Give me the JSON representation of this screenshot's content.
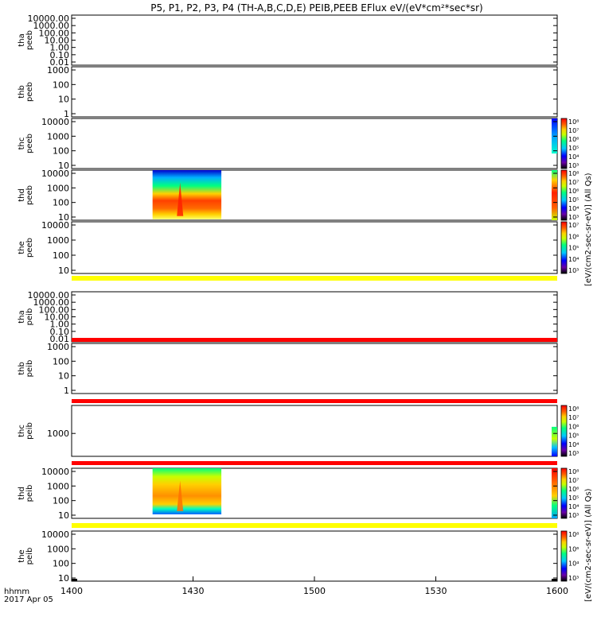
{
  "title": "P5, P1, P2, P3, P4 (TH-A,B,C,D,E) PEIB,PEEB EFlux eV/(eV*cm²*sec*sr)",
  "footer": {
    "xunit": "hhmm",
    "date": "2017 Apr 05"
  },
  "cbar_labels": {
    "upper": "[eV/(cm2-sec-sr-eV)] (All Qs)",
    "lower": "[eV/(cm2-sec-sr-eV)] (All Qs)"
  },
  "colors": {
    "spectrum": [
      "#000000",
      "#6a00a8",
      "#0000ff",
      "#00c8ff",
      "#00ff80",
      "#c8ff00",
      "#ffd000",
      "#ff6000",
      "#ff0000"
    ],
    "band_yellow": "#ffff00",
    "band_red": "#ff0000"
  },
  "chart_data": {
    "type": "heatmap",
    "x_ticks": [
      "1400",
      "1430",
      "1500",
      "1530",
      "1600"
    ],
    "xlim": [
      "1400",
      "1600"
    ],
    "panels": [
      {
        "id": "tha-peeb",
        "ylabel": [
          "tha",
          "peeb"
        ],
        "ticks": [
          "10000.00",
          "1000.00",
          "100.00",
          "10.00",
          "1.00",
          "0.10",
          "0.01"
        ],
        "data": [],
        "colorbar": null
      },
      {
        "id": "thb-peeb",
        "ylabel": [
          "thb",
          "peeb"
        ],
        "ticks": [
          "1000",
          "100",
          "10",
          "1"
        ],
        "data": [],
        "colorbar": null
      },
      {
        "id": "thc-peeb",
        "ylabel": [
          "thc",
          "peeb"
        ],
        "ticks": [
          "10000",
          "1000",
          "100",
          "10"
        ],
        "data": [
          {
            "x": [
              "1557",
              "1600"
            ],
            "level": "blue-cyan"
          }
        ],
        "colorbar": {
          "ticks": [
            "10⁸",
            "10⁷",
            "10⁶",
            "10⁵",
            "10⁴",
            "10³"
          ]
        }
      },
      {
        "id": "thd-peeb",
        "ylabel": [
          "thd",
          "peeb"
        ],
        "ticks": [
          "10000",
          "1000",
          "100",
          "10"
        ],
        "data": [
          {
            "x": [
              "1420",
              "1437"
            ],
            "level": "orange-red peak"
          },
          {
            "x": [
              "1557",
              "1600"
            ],
            "level": "red-orange"
          }
        ],
        "colorbar": {
          "ticks": [
            "10⁸",
            "10⁷",
            "10⁶",
            "10⁵",
            "10⁴",
            "10³"
          ]
        }
      },
      {
        "id": "the-peeb",
        "ylabel": [
          "the",
          "peeb"
        ],
        "ticks": [
          "10000",
          "1000",
          "100",
          "10"
        ],
        "data": [],
        "colorbar": {
          "ticks": [
            "10⁷",
            "10⁶",
            "10⁵",
            "10⁴",
            "10³"
          ]
        }
      },
      {
        "id": "tha-peib",
        "ylabel": [
          "tha",
          "peib"
        ],
        "ticks": [
          "10000.00",
          "1000.00",
          "100.00",
          "10.00",
          "1.00",
          "0.10",
          "0.01"
        ],
        "data": [],
        "colorbar": null
      },
      {
        "id": "thb-peib",
        "ylabel": [
          "thb",
          "peib"
        ],
        "ticks": [
          "1000",
          "100",
          "10",
          "1"
        ],
        "data": [],
        "colorbar": null
      },
      {
        "id": "thc-peib",
        "ylabel": [
          "thc",
          "peib"
        ],
        "ticks": [
          "1000"
        ],
        "data": [
          {
            "x": [
              "1557",
              "1600"
            ],
            "level": "cyan-yellow"
          }
        ],
        "colorbar": {
          "ticks": [
            "10⁸",
            "10⁷",
            "10⁶",
            "10⁵",
            "10⁴",
            "10³"
          ]
        }
      },
      {
        "id": "thd-peib",
        "ylabel": [
          "thd",
          "peib"
        ],
        "ticks": [
          "10000",
          "1000",
          "100",
          "10"
        ],
        "data": [
          {
            "x": [
              "1420",
              "1437"
            ],
            "level": "yellow-orange peak"
          },
          {
            "x": [
              "1557",
              "1600"
            ],
            "level": "red-cyan"
          }
        ],
        "colorbar": {
          "ticks": [
            "10⁸",
            "10⁷",
            "10⁶",
            "10⁵",
            "10⁴",
            "10³"
          ]
        }
      },
      {
        "id": "the-peib",
        "ylabel": [
          "the",
          "peib"
        ],
        "ticks": [
          "10000",
          "1000",
          "100",
          "10"
        ],
        "data": [],
        "colorbar": {
          "ticks": [
            "10⁸",
            "10⁶",
            "10⁴",
            "10³"
          ]
        }
      }
    ]
  }
}
